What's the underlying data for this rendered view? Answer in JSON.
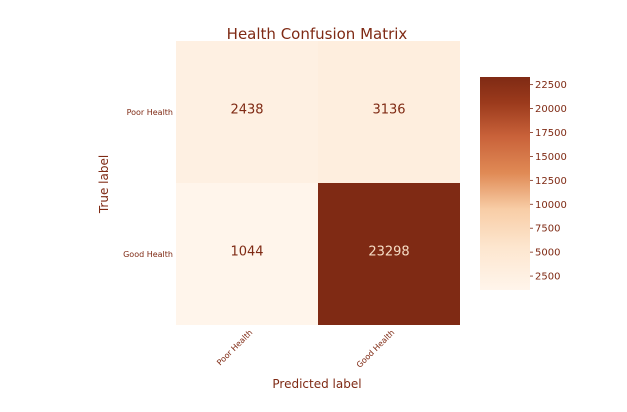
{
  "chart_data": {
    "type": "heatmap",
    "title": "Health Confusion Matrix",
    "xlabel": "Predicted label",
    "ylabel": "True label",
    "x_categories": [
      "Poor Health",
      "Good Health"
    ],
    "y_categories": [
      "Poor Health",
      "Good Health"
    ],
    "values": [
      [
        2438,
        3136
      ],
      [
        1044,
        23298
      ]
    ],
    "colorbar": {
      "min": 1044,
      "max": 23298,
      "ticks": [
        2500,
        5000,
        7500,
        10000,
        12500,
        15000,
        17500,
        20000,
        22500
      ]
    },
    "colormap": "Oranges",
    "colors": {
      "low": "#fff5eb",
      "mid": "#e08a55",
      "high": "#7f2a14",
      "text": "#7f2a14",
      "text_on_dark": "#f6dcc4"
    },
    "grid": false
  }
}
